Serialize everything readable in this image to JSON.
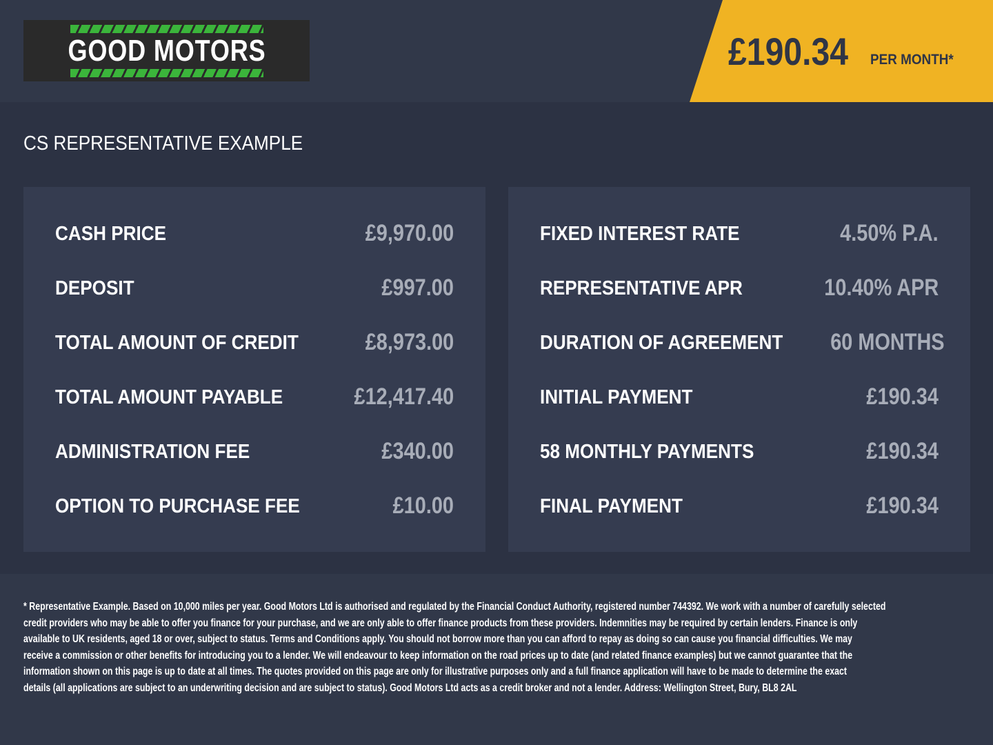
{
  "brand": {
    "name": "GOOD MOTORS",
    "accent": "#3bb53b"
  },
  "badge": {
    "price": "£190.34",
    "suffix": "PER MONTH*",
    "color": "#f0b323"
  },
  "heading": "CS REPRESENTATIVE EXAMPLE",
  "left": [
    {
      "label": "CASH PRICE",
      "value": "£9,970.00"
    },
    {
      "label": "DEPOSIT",
      "value": "£997.00"
    },
    {
      "label": "TOTAL AMOUNT OF CREDIT",
      "value": "£8,973.00"
    },
    {
      "label": "TOTAL AMOUNT PAYABLE",
      "value": "£12,417.40"
    },
    {
      "label": "ADMINISTRATION FEE",
      "value": "£340.00"
    },
    {
      "label": "OPTION TO PURCHASE FEE",
      "value": "£10.00"
    }
  ],
  "right": [
    {
      "label": "FIXED INTEREST RATE",
      "value": "4.50% P.A."
    },
    {
      "label": "REPRESENTATIVE APR",
      "value": "10.40% APR"
    },
    {
      "label": "DURATION OF AGREEMENT",
      "value": "60 MONTHS"
    },
    {
      "label": "INITIAL PAYMENT",
      "value": "£190.34"
    },
    {
      "label": "58 MONTHLY PAYMENTS",
      "value": "£190.34"
    },
    {
      "label": "FINAL PAYMENT",
      "value": "£190.34"
    }
  ],
  "footer": [
    "* Representative Example. Based on 10,000 miles per year. Good Motors Ltd is authorised and regulated by the Financial Conduct Authority, registered number 744392. We work with a number of carefully selected",
    "credit providers who may be able to offer you finance for your purchase, and we are only able to offer finance products from these providers. Indemnities may be required by certain lenders. Finance is only",
    "available to UK residents, aged 18 or over, subject to status. Terms and Conditions apply. You should not borrow more than you can afford to repay as doing so can cause you financial difficulties. We may",
    "receive a commission or other benefits for introducing you to a lender. We will endeavour to keep information on the road prices up to date (and related finance examples) but we cannot guarantee that the",
    "information shown on this page is up to date at all times. The quotes provided on this page are only for illustrative purposes only and a full finance application will have to be made to determine the exact",
    "details (all applications are subject to an underwriting decision and are subject to status). Good Motors Ltd acts as a credit broker and not a lender. Address: Wellington Street, Bury, BL8 2AL"
  ]
}
